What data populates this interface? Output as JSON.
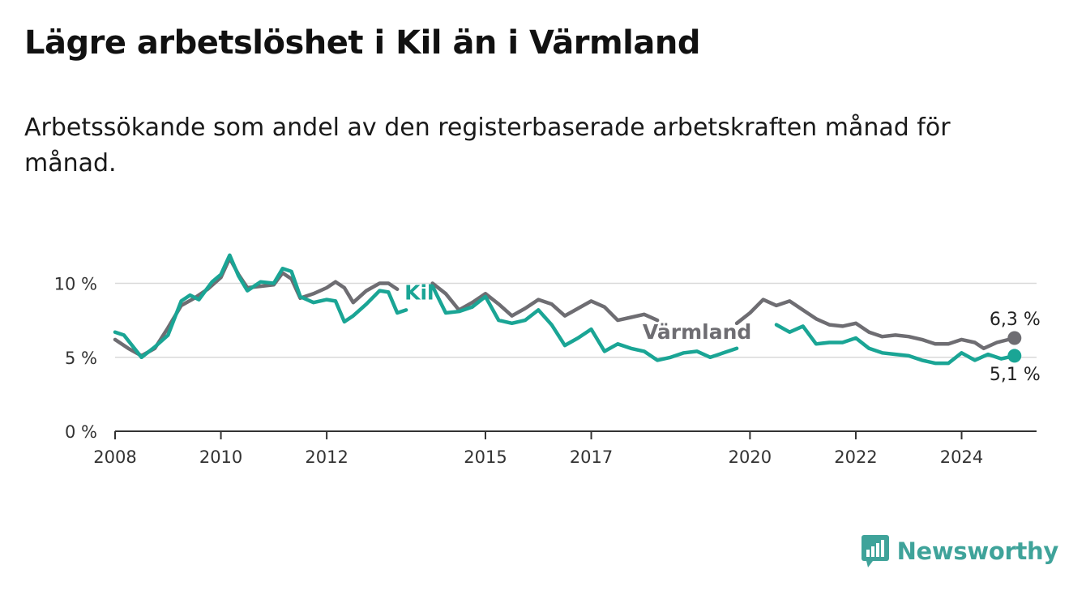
{
  "header": {
    "title": "Lägre arbetslöshet i Kil än i Värmland",
    "subtitle": "Arbetssökande som andel av den registerbaserade arbetskraften månad för månad."
  },
  "brand": {
    "name": "Newsworthy",
    "icon": "newsworthy-logo-icon",
    "color": "#3fa39a"
  },
  "chart_data": {
    "type": "line",
    "title": "Lägre arbetslöshet i Kil än i Värmland",
    "subtitle": "Arbetssökande som andel av den registerbaserade arbetskraften månad för månad.",
    "xlabel": "",
    "ylabel": "",
    "xlim": [
      "2008-01",
      "2025-06"
    ],
    "ylim": [
      0,
      12
    ],
    "y_ticks": [
      0,
      5,
      10
    ],
    "y_tick_labels": [
      "0 %",
      "5 %",
      "10 %"
    ],
    "x_ticks": [
      2008,
      2010,
      2012,
      2015,
      2017,
      2020,
      2022,
      2024
    ],
    "grid": "horizontal",
    "legend": "inline labels",
    "series": [
      {
        "name": "Värmland",
        "color": "#6e6d72",
        "end_label": "6,3 %",
        "points": [
          [
            "2008-01",
            6.2
          ],
          [
            "2008-04",
            5.6
          ],
          [
            "2008-07",
            5.1
          ],
          [
            "2008-10",
            5.6
          ],
          [
            "2009-01",
            7.0
          ],
          [
            "2009-04",
            8.5
          ],
          [
            "2009-07",
            9.0
          ],
          [
            "2009-10",
            9.6
          ],
          [
            "2010-01",
            10.4
          ],
          [
            "2010-03",
            11.7
          ],
          [
            "2010-05",
            10.6
          ],
          [
            "2010-07",
            9.7
          ],
          [
            "2010-10",
            9.8
          ],
          [
            "2011-01",
            9.9
          ],
          [
            "2011-03",
            10.7
          ],
          [
            "2011-05",
            10.3
          ],
          [
            "2011-07",
            9.0
          ],
          [
            "2011-10",
            9.3
          ],
          [
            "2012-01",
            9.7
          ],
          [
            "2012-03",
            10.1
          ],
          [
            "2012-05",
            9.7
          ],
          [
            "2012-07",
            8.7
          ],
          [
            "2012-10",
            9.5
          ],
          [
            "2013-01",
            10.0
          ],
          [
            "2013-03",
            10.0
          ],
          [
            "2013-05",
            9.6
          ],
          [
            "2013-07",
            null
          ],
          [
            "2014-01",
            10.0
          ],
          [
            "2014-04",
            9.3
          ],
          [
            "2014-07",
            8.2
          ],
          [
            "2014-10",
            8.7
          ],
          [
            "2015-01",
            9.3
          ],
          [
            "2015-04",
            8.6
          ],
          [
            "2015-07",
            7.8
          ],
          [
            "2015-10",
            8.3
          ],
          [
            "2016-01",
            8.9
          ],
          [
            "2016-04",
            8.6
          ],
          [
            "2016-07",
            7.8
          ],
          [
            "2016-10",
            8.3
          ],
          [
            "2017-01",
            8.8
          ],
          [
            "2017-04",
            8.4
          ],
          [
            "2017-07",
            7.5
          ],
          [
            "2017-10",
            7.7
          ],
          [
            "2018-01",
            7.9
          ],
          [
            "2018-04",
            7.5
          ],
          [
            "2018-06",
            null
          ],
          [
            "2019-10",
            7.3
          ],
          [
            "2020-01",
            8.0
          ],
          [
            "2020-04",
            8.9
          ],
          [
            "2020-07",
            8.5
          ],
          [
            "2020-10",
            8.8
          ],
          [
            "2021-01",
            8.2
          ],
          [
            "2021-04",
            7.6
          ],
          [
            "2021-07",
            7.2
          ],
          [
            "2021-10",
            7.1
          ],
          [
            "2022-01",
            7.3
          ],
          [
            "2022-04",
            6.7
          ],
          [
            "2022-07",
            6.4
          ],
          [
            "2022-10",
            6.5
          ],
          [
            "2023-01",
            6.4
          ],
          [
            "2023-04",
            6.2
          ],
          [
            "2023-07",
            5.9
          ],
          [
            "2023-10",
            5.9
          ],
          [
            "2024-01",
            6.2
          ],
          [
            "2024-04",
            6.0
          ],
          [
            "2024-06",
            5.6
          ],
          [
            "2024-09",
            6.0
          ],
          [
            "2025-01",
            6.3
          ]
        ]
      },
      {
        "name": "Kil",
        "color": "#1aa595",
        "end_label": "5,1 %",
        "points": [
          [
            "2008-01",
            6.7
          ],
          [
            "2008-03",
            6.5
          ],
          [
            "2008-07",
            5.0
          ],
          [
            "2008-10",
            5.7
          ],
          [
            "2009-01",
            6.5
          ],
          [
            "2009-04",
            8.8
          ],
          [
            "2009-06",
            9.2
          ],
          [
            "2009-08",
            8.9
          ],
          [
            "2009-11",
            10.1
          ],
          [
            "2010-01",
            10.6
          ],
          [
            "2010-03",
            11.9
          ],
          [
            "2010-05",
            10.5
          ],
          [
            "2010-07",
            9.5
          ],
          [
            "2010-10",
            10.1
          ],
          [
            "2011-01",
            10.0
          ],
          [
            "2011-03",
            11.0
          ],
          [
            "2011-05",
            10.8
          ],
          [
            "2011-07",
            9.1
          ],
          [
            "2011-10",
            8.7
          ],
          [
            "2012-01",
            8.9
          ],
          [
            "2012-03",
            8.8
          ],
          [
            "2012-05",
            7.4
          ],
          [
            "2012-07",
            7.8
          ],
          [
            "2012-10",
            8.6
          ],
          [
            "2013-01",
            9.5
          ],
          [
            "2013-03",
            9.4
          ],
          [
            "2013-05",
            8.0
          ],
          [
            "2013-07",
            8.2
          ],
          [
            "2013-08",
            null
          ],
          [
            "2014-01",
            9.8
          ],
          [
            "2014-04",
            8.0
          ],
          [
            "2014-07",
            8.1
          ],
          [
            "2014-10",
            8.4
          ],
          [
            "2015-01",
            9.1
          ],
          [
            "2015-04",
            7.5
          ],
          [
            "2015-07",
            7.3
          ],
          [
            "2015-10",
            7.5
          ],
          [
            "2016-01",
            8.2
          ],
          [
            "2016-04",
            7.2
          ],
          [
            "2016-07",
            5.8
          ],
          [
            "2016-10",
            6.3
          ],
          [
            "2017-01",
            6.9
          ],
          [
            "2017-04",
            5.4
          ],
          [
            "2017-07",
            5.9
          ],
          [
            "2017-10",
            5.6
          ],
          [
            "2018-01",
            5.4
          ],
          [
            "2018-04",
            4.8
          ],
          [
            "2018-07",
            5.0
          ],
          [
            "2018-10",
            5.3
          ],
          [
            "2019-01",
            5.4
          ],
          [
            "2019-04",
            5.0
          ],
          [
            "2019-07",
            5.3
          ],
          [
            "2019-10",
            5.6
          ],
          [
            "2019-11",
            null
          ],
          [
            "2020-07",
            7.2
          ],
          [
            "2020-10",
            6.7
          ],
          [
            "2021-01",
            7.1
          ],
          [
            "2021-04",
            5.9
          ],
          [
            "2021-07",
            6.0
          ],
          [
            "2021-10",
            6.0
          ],
          [
            "2022-01",
            6.3
          ],
          [
            "2022-04",
            5.6
          ],
          [
            "2022-07",
            5.3
          ],
          [
            "2022-10",
            5.2
          ],
          [
            "2023-01",
            5.1
          ],
          [
            "2023-04",
            4.8
          ],
          [
            "2023-07",
            4.6
          ],
          [
            "2023-10",
            4.6
          ],
          [
            "2024-01",
            5.3
          ],
          [
            "2024-04",
            4.8
          ],
          [
            "2024-07",
            5.2
          ],
          [
            "2024-10",
            4.9
          ],
          [
            "2025-01",
            5.1
          ]
        ]
      }
    ]
  }
}
